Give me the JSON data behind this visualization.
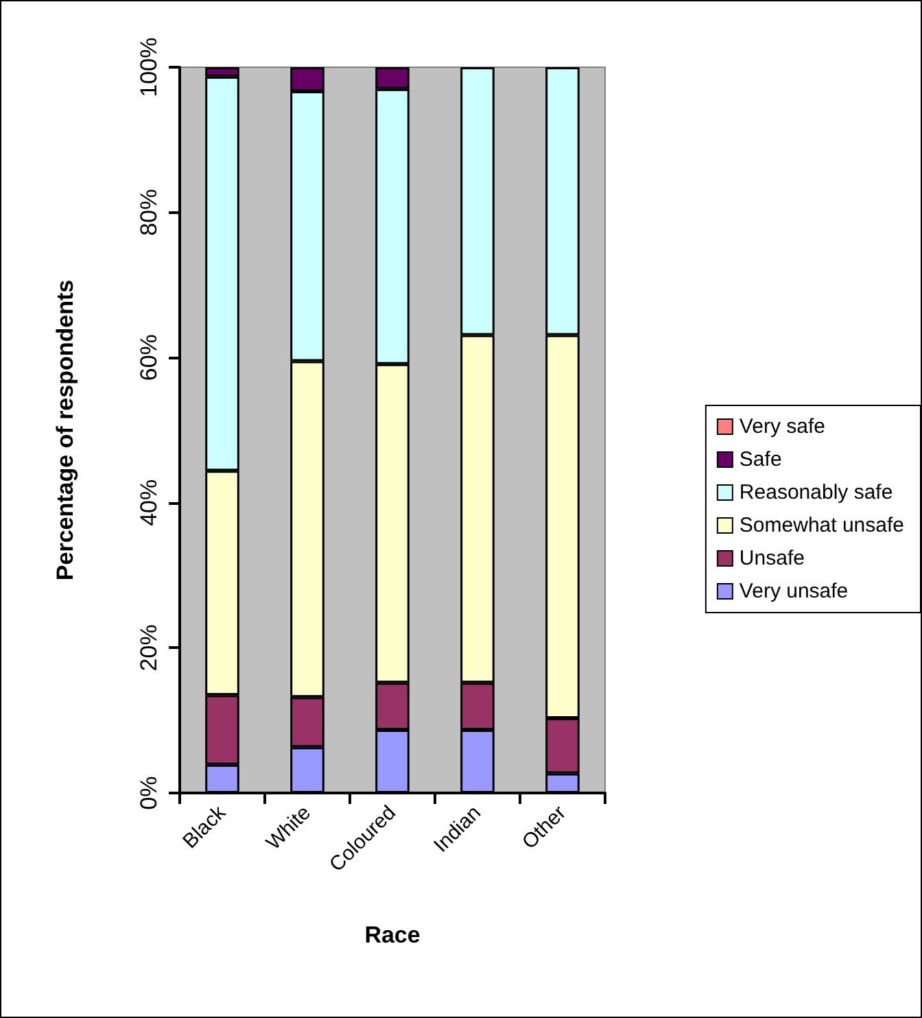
{
  "chart_data": {
    "type": "bar",
    "stacked": true,
    "xlabel": "Race",
    "ylabel": "Percentage of respondents",
    "categories": [
      "Black",
      "White",
      "Coloured",
      "Indian",
      "Other"
    ],
    "series": [
      {
        "name": "Very unsafe",
        "color": "#9999ff",
        "values": [
          3.9,
          6.3,
          8.7,
          8.7,
          2.7
        ]
      },
      {
        "name": "Unsafe",
        "color": "#993366",
        "values": [
          9.6,
          6.9,
          6.5,
          6.5,
          7.6
        ]
      },
      {
        "name": "Somewhat unsafe",
        "color": "#ffffcc",
        "values": [
          30.9,
          46.3,
          43.9,
          47.9,
          52.8
        ]
      },
      {
        "name": "Reasonably safe",
        "color": "#ccffff",
        "values": [
          54.3,
          37.2,
          37.9,
          36.9,
          36.9
        ]
      },
      {
        "name": "Safe",
        "color": "#660066",
        "values": [
          1.3,
          3.3,
          3.0,
          0,
          0
        ]
      },
      {
        "name": "Very safe",
        "color": "#ff8080",
        "values": [
          0,
          0,
          0,
          0,
          0
        ]
      }
    ],
    "ylim": [
      0,
      100
    ],
    "yticks": [
      {
        "value": 0,
        "label": "0%"
      },
      {
        "value": 20,
        "label": "20%"
      },
      {
        "value": 40,
        "label": "40%"
      },
      {
        "value": 60,
        "label": "60%"
      },
      {
        "value": 80,
        "label": "80%"
      },
      {
        "value": 100,
        "label": "100%"
      }
    ],
    "grid": false,
    "legend": "right"
  }
}
